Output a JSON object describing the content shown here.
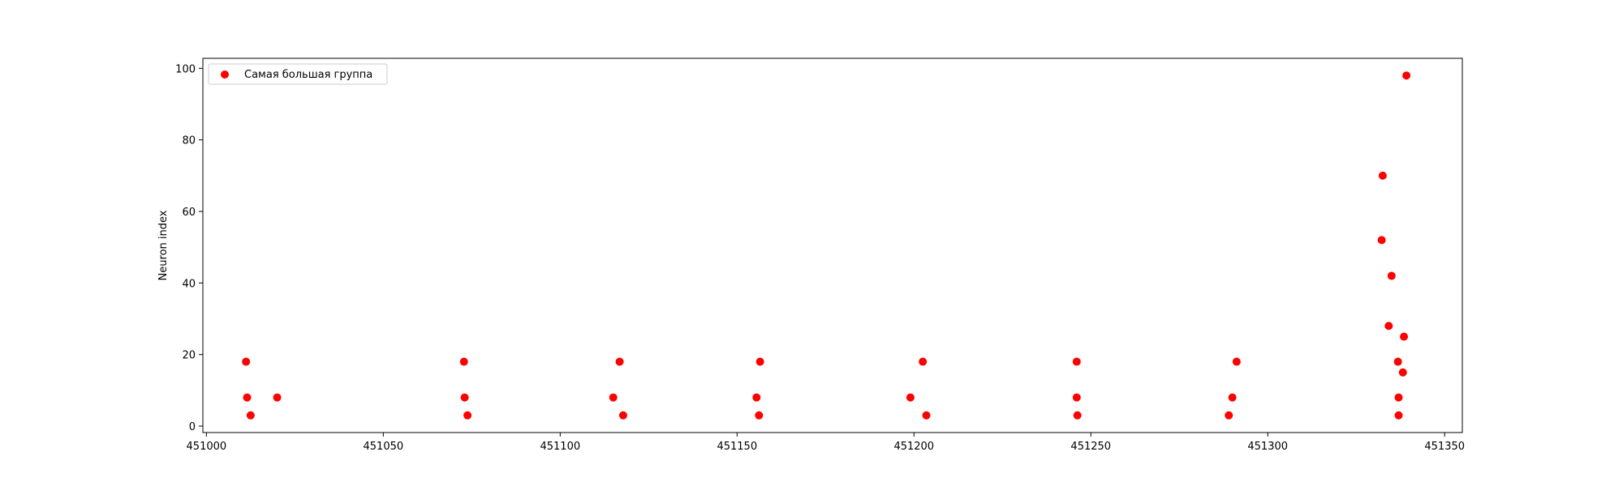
{
  "chart_data": {
    "type": "scatter",
    "title": "",
    "xlabel": "",
    "ylabel": "Neuron index",
    "xlim": [
      450999,
      451355
    ],
    "ylim": [
      -1.8,
      102.8
    ],
    "xticks": [
      451000,
      451050,
      451100,
      451150,
      451200,
      451250,
      451300,
      451350
    ],
    "yticks": [
      0,
      20,
      40,
      60,
      80,
      100
    ],
    "grid": false,
    "legend": {
      "placement": "upper left",
      "entries": [
        "Самая большая группа"
      ]
    },
    "series": [
      {
        "name": "Самая большая группа",
        "color": "#ff0000",
        "marker": "circle",
        "points": [
          {
            "x": 451011.2,
            "y": 18
          },
          {
            "x": 451011.5,
            "y": 8
          },
          {
            "x": 451012.5,
            "y": 3
          },
          {
            "x": 451020.0,
            "y": 8
          },
          {
            "x": 451072.8,
            "y": 18
          },
          {
            "x": 451073.0,
            "y": 8
          },
          {
            "x": 451073.8,
            "y": 3
          },
          {
            "x": 451116.8,
            "y": 18
          },
          {
            "x": 451115.0,
            "y": 8
          },
          {
            "x": 451117.8,
            "y": 3
          },
          {
            "x": 451156.5,
            "y": 18
          },
          {
            "x": 451155.5,
            "y": 8
          },
          {
            "x": 451156.2,
            "y": 3
          },
          {
            "x": 451202.5,
            "y": 18
          },
          {
            "x": 451199.0,
            "y": 8
          },
          {
            "x": 451203.5,
            "y": 3
          },
          {
            "x": 451246.0,
            "y": 18
          },
          {
            "x": 451246.0,
            "y": 8
          },
          {
            "x": 451246.2,
            "y": 3
          },
          {
            "x": 451291.2,
            "y": 18
          },
          {
            "x": 451290.0,
            "y": 8
          },
          {
            "x": 451289.0,
            "y": 3
          },
          {
            "x": 451332.5,
            "y": 70
          },
          {
            "x": 451332.2,
            "y": 52
          },
          {
            "x": 451335.0,
            "y": 42
          },
          {
            "x": 451334.2,
            "y": 28
          },
          {
            "x": 451338.5,
            "y": 25
          },
          {
            "x": 451336.8,
            "y": 18
          },
          {
            "x": 451338.2,
            "y": 15
          },
          {
            "x": 451337.0,
            "y": 8
          },
          {
            "x": 451337.0,
            "y": 3
          },
          {
            "x": 451339.2,
            "y": 98
          }
        ]
      }
    ]
  }
}
